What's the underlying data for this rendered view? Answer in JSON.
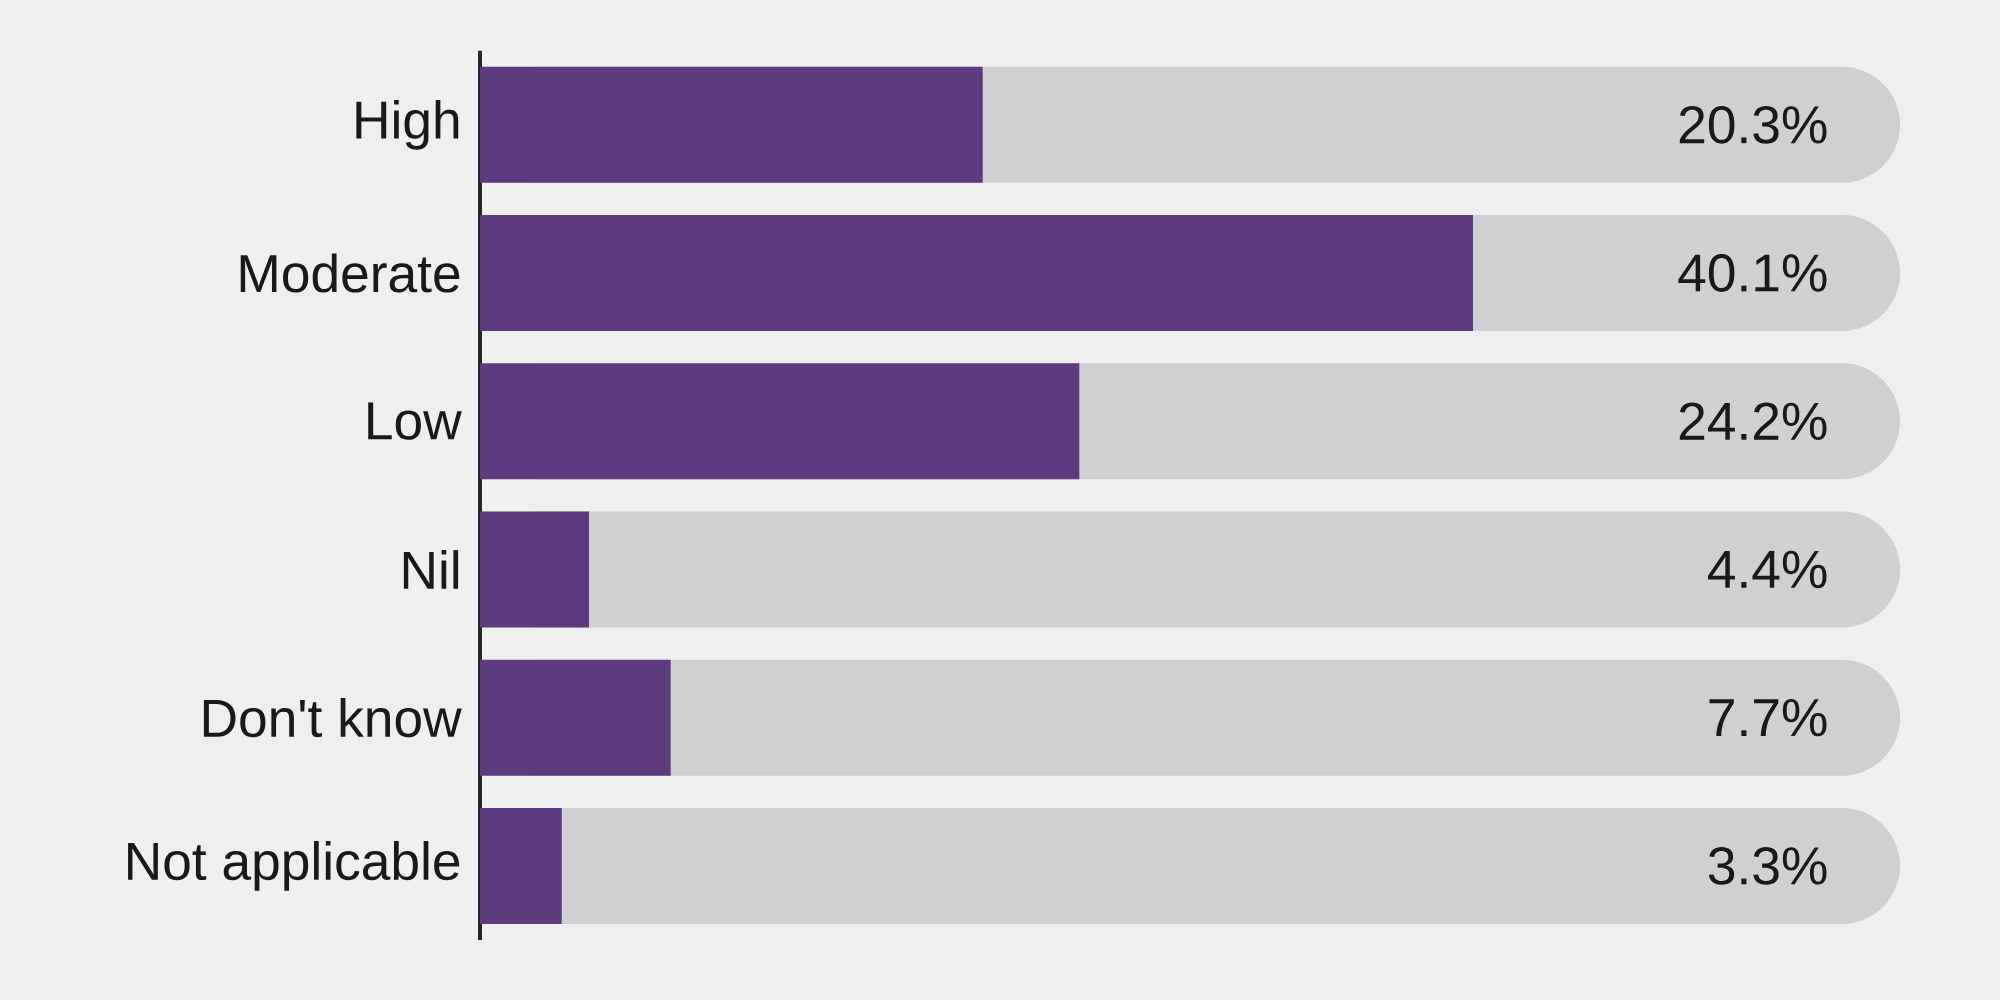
{
  "chart_data": {
    "type": "bar",
    "orientation": "horizontal",
    "categories": [
      "High",
      "Moderate",
      "Low",
      "Nil",
      "Don't know",
      "Not applicable"
    ],
    "values": [
      20.3,
      40.1,
      24.2,
      4.4,
      7.7,
      3.3
    ],
    "value_labels": [
      "20.3%",
      "40.1%",
      "24.2%",
      "4.4%",
      "7.7%",
      "3.3%"
    ],
    "color": "#5e3a7e",
    "tick_labels": "y"
  }
}
